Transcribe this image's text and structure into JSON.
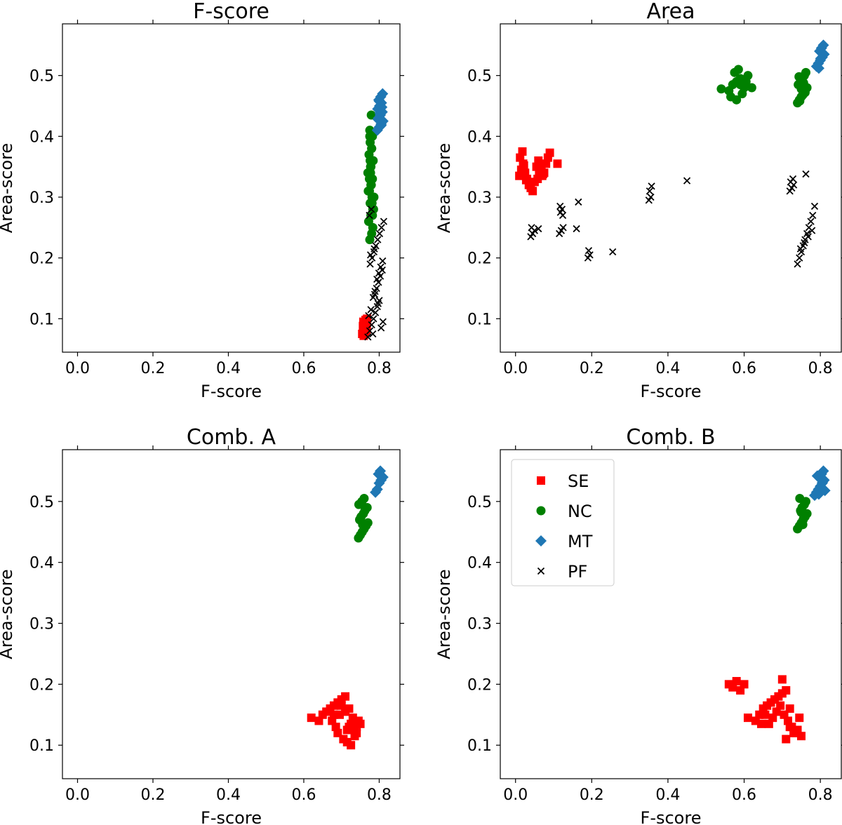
{
  "chart_data": [
    {
      "type": "scatter",
      "title": "F-score",
      "xlabel": "F-score",
      "ylabel": "Area-score",
      "xlim": [
        -0.04,
        0.855
      ],
      "ylim": [
        0.045,
        0.585
      ],
      "xticks": [
        0.0,
        0.2,
        0.4,
        0.6,
        0.8
      ],
      "xtick_labels": [
        "0.0",
        "0.2",
        "0.4",
        "0.6",
        "0.8"
      ],
      "yticks": [
        0.1,
        0.2,
        0.3,
        0.4,
        0.5
      ],
      "ytick_labels": [
        "0.1",
        "0.2",
        "0.3",
        "0.4",
        "0.5"
      ],
      "legend": false,
      "series": [
        {
          "name": "SE",
          "marker": "square",
          "color": "#ff0000",
          "x": [
            0.755,
            0.76,
            0.762,
            0.765,
            0.758,
            0.768,
            0.763,
            0.757,
            0.766,
            0.761,
            0.764,
            0.759,
            0.767,
            0.762,
            0.76
          ],
          "y": [
            0.075,
            0.08,
            0.085,
            0.09,
            0.095,
            0.1,
            0.078,
            0.088,
            0.082,
            0.092,
            0.098,
            0.072,
            0.086,
            0.094,
            0.083
          ]
        },
        {
          "name": "NC",
          "marker": "circle",
          "color": "#008000",
          "x": [
            0.775,
            0.78,
            0.783,
            0.772,
            0.778,
            0.785,
            0.776,
            0.781,
            0.774,
            0.779,
            0.782,
            0.77,
            0.777,
            0.784,
            0.773,
            0.78,
            0.776,
            0.782,
            0.775,
            0.779,
            0.786,
            0.771,
            0.778,
            0.781,
            0.774,
            0.777,
            0.783,
            0.776,
            0.78,
            0.775,
            0.782,
            0.778
          ],
          "y": [
            0.23,
            0.24,
            0.25,
            0.26,
            0.27,
            0.28,
            0.29,
            0.3,
            0.31,
            0.32,
            0.33,
            0.34,
            0.35,
            0.36,
            0.37,
            0.38,
            0.39,
            0.4,
            0.41,
            0.435,
            0.3,
            0.31,
            0.32,
            0.29,
            0.33,
            0.34,
            0.28,
            0.36,
            0.38,
            0.4,
            0.27,
            0.35
          ]
        },
        {
          "name": "MT",
          "marker": "diamond",
          "color": "#1f77b4",
          "x": [
            0.795,
            0.8,
            0.805,
            0.81,
            0.798,
            0.803,
            0.808,
            0.796,
            0.801,
            0.806,
            0.799,
            0.804,
            0.809,
            0.797,
            0.802,
            0.807,
            0.8,
            0.805
          ],
          "y": [
            0.41,
            0.415,
            0.42,
            0.425,
            0.43,
            0.435,
            0.44,
            0.445,
            0.45,
            0.455,
            0.46,
            0.465,
            0.47,
            0.428,
            0.438,
            0.448,
            0.458,
            0.418
          ]
        },
        {
          "name": "PF",
          "marker": "x",
          "color": "#000000",
          "x": [
            0.77,
            0.775,
            0.78,
            0.785,
            0.79,
            0.795,
            0.8,
            0.805,
            0.81,
            0.772,
            0.778,
            0.783,
            0.788,
            0.793,
            0.798,
            0.803,
            0.808,
            0.776,
            0.781,
            0.786,
            0.791,
            0.796,
            0.801,
            0.806,
            0.812,
            0.774,
            0.779,
            0.784,
            0.789,
            0.794,
            0.799,
            0.804,
            0.809,
            0.777,
            0.787,
            0.797
          ],
          "y": [
            0.07,
            0.08,
            0.09,
            0.1,
            0.11,
            0.12,
            0.13,
            0.085,
            0.095,
            0.105,
            0.115,
            0.075,
            0.14,
            0.15,
            0.16,
            0.17,
            0.18,
            0.19,
            0.2,
            0.21,
            0.22,
            0.23,
            0.24,
            0.25,
            0.26,
            0.27,
            0.28,
            0.135,
            0.145,
            0.165,
            0.175,
            0.185,
            0.195,
            0.205,
            0.215,
            0.125
          ]
        }
      ]
    },
    {
      "type": "scatter",
      "title": "Area",
      "xlabel": "F-score",
      "ylabel": "Area-score",
      "xlim": [
        -0.04,
        0.855
      ],
      "ylim": [
        0.045,
        0.585
      ],
      "xticks": [
        0.0,
        0.2,
        0.4,
        0.6,
        0.8
      ],
      "xtick_labels": [
        "0.0",
        "0.2",
        "0.4",
        "0.6",
        "0.8"
      ],
      "yticks": [
        0.1,
        0.2,
        0.3,
        0.4,
        0.5
      ],
      "ytick_labels": [
        "0.1",
        "0.2",
        "0.3",
        "0.4",
        "0.5"
      ],
      "legend": false,
      "series": [
        {
          "name": "SE",
          "marker": "square",
          "color": "#ff0000",
          "x": [
            0.01,
            0.015,
            0.02,
            0.012,
            0.018,
            0.025,
            0.03,
            0.035,
            0.04,
            0.045,
            0.05,
            0.055,
            0.06,
            0.065,
            0.07,
            0.075,
            0.08,
            0.085,
            0.09,
            0.11,
            0.058,
            0.062,
            0.068,
            0.072,
            0.028,
            0.022
          ],
          "y": [
            0.335,
            0.345,
            0.355,
            0.365,
            0.375,
            0.34,
            0.33,
            0.32,
            0.315,
            0.31,
            0.325,
            0.35,
            0.36,
            0.345,
            0.335,
            0.34,
            0.355,
            0.365,
            0.373,
            0.355,
            0.33,
            0.34,
            0.348,
            0.338,
            0.328,
            0.352
          ]
        },
        {
          "name": "NC",
          "marker": "circle",
          "color": "#008000",
          "x": [
            0.54,
            0.56,
            0.57,
            0.58,
            0.59,
            0.6,
            0.61,
            0.62,
            0.575,
            0.585,
            0.595,
            0.565,
            0.605,
            0.58,
            0.59,
            0.74,
            0.745,
            0.75,
            0.755,
            0.76,
            0.765,
            0.742,
            0.748,
            0.752,
            0.758,
            0.762,
            0.746,
            0.754,
            0.75,
            0.756,
            0.744,
            0.76
          ],
          "y": [
            0.478,
            0.475,
            0.485,
            0.49,
            0.495,
            0.48,
            0.5,
            0.48,
            0.505,
            0.51,
            0.47,
            0.465,
            0.49,
            0.46,
            0.485,
            0.455,
            0.46,
            0.465,
            0.47,
            0.475,
            0.48,
            0.485,
            0.49,
            0.495,
            0.5,
            0.505,
            0.458,
            0.468,
            0.478,
            0.488,
            0.498,
            0.472
          ]
        },
        {
          "name": "MT",
          "marker": "diamond",
          "color": "#1f77b4",
          "x": [
            0.79,
            0.795,
            0.8,
            0.805,
            0.81,
            0.798,
            0.803,
            0.808,
            0.796,
            0.801
          ],
          "y": [
            0.515,
            0.52,
            0.525,
            0.53,
            0.535,
            0.54,
            0.545,
            0.55,
            0.512,
            0.528
          ]
        },
        {
          "name": "PF",
          "marker": "x",
          "color": "#000000",
          "x": [
            0.04,
            0.045,
            0.05,
            0.06,
            0.042,
            0.115,
            0.12,
            0.125,
            0.118,
            0.122,
            0.117,
            0.124,
            0.16,
            0.165,
            0.19,
            0.195,
            0.192,
            0.255,
            0.35,
            0.355,
            0.352,
            0.357,
            0.45,
            0.72,
            0.725,
            0.73,
            0.722,
            0.728,
            0.74,
            0.745,
            0.75,
            0.755,
            0.76,
            0.765,
            0.77,
            0.775,
            0.78,
            0.785,
            0.748,
            0.758,
            0.768,
            0.778,
            0.762
          ],
          "y": [
            0.235,
            0.24,
            0.245,
            0.248,
            0.25,
            0.24,
            0.245,
            0.25,
            0.275,
            0.28,
            0.285,
            0.27,
            0.248,
            0.292,
            0.2,
            0.205,
            0.212,
            0.21,
            0.295,
            0.3,
            0.31,
            0.318,
            0.327,
            0.31,
            0.315,
            0.32,
            0.325,
            0.33,
            0.19,
            0.2,
            0.21,
            0.22,
            0.23,
            0.24,
            0.25,
            0.26,
            0.27,
            0.285,
            0.215,
            0.225,
            0.235,
            0.245,
            0.338
          ]
        }
      ]
    },
    {
      "type": "scatter",
      "title": "Comb. A",
      "xlabel": "F-score",
      "ylabel": "Area-score",
      "xlim": [
        -0.04,
        0.855
      ],
      "ylim": [
        0.045,
        0.585
      ],
      "xticks": [
        0.0,
        0.2,
        0.4,
        0.6,
        0.8
      ],
      "xtick_labels": [
        "0.0",
        "0.2",
        "0.4",
        "0.6",
        "0.8"
      ],
      "yticks": [
        0.1,
        0.2,
        0.3,
        0.4,
        0.5
      ],
      "ytick_labels": [
        "0.1",
        "0.2",
        "0.3",
        "0.4",
        "0.5"
      ],
      "legend": false,
      "series": [
        {
          "name": "SE",
          "marker": "square",
          "color": "#ff0000",
          "x": [
            0.62,
            0.64,
            0.65,
            0.66,
            0.67,
            0.68,
            0.69,
            0.7,
            0.71,
            0.72,
            0.73,
            0.74,
            0.75,
            0.705,
            0.715,
            0.725,
            0.735,
            0.695,
            0.685,
            0.675,
            0.72,
            0.73,
            0.71,
            0.7,
            0.74,
            0.745,
            0.69,
            0.68,
            0.715,
            0.725
          ],
          "y": [
            0.145,
            0.14,
            0.15,
            0.155,
            0.16,
            0.165,
            0.17,
            0.175,
            0.18,
            0.13,
            0.125,
            0.12,
            0.135,
            0.11,
            0.105,
            0.1,
            0.115,
            0.15,
            0.13,
            0.14,
            0.16,
            0.145,
            0.155,
            0.165,
            0.13,
            0.14,
            0.12,
            0.15,
            0.125,
            0.135
          ]
        },
        {
          "name": "NC",
          "marker": "circle",
          "color": "#008000",
          "x": [
            0.745,
            0.75,
            0.755,
            0.76,
            0.765,
            0.77,
            0.748,
            0.752,
            0.758,
            0.762,
            0.768,
            0.746,
            0.754,
            0.76,
            0.756,
            0.75
          ],
          "y": [
            0.44,
            0.445,
            0.45,
            0.455,
            0.46,
            0.465,
            0.47,
            0.475,
            0.48,
            0.485,
            0.49,
            0.495,
            0.5,
            0.505,
            0.462,
            0.472
          ]
        },
        {
          "name": "MT",
          "marker": "diamond",
          "color": "#1f77b4",
          "x": [
            0.79,
            0.795,
            0.8,
            0.805,
            0.81,
            0.798,
            0.803
          ],
          "y": [
            0.515,
            0.52,
            0.53,
            0.535,
            0.54,
            0.545,
            0.55
          ]
        }
      ]
    },
    {
      "type": "scatter",
      "title": "Comb. B",
      "xlabel": "F-score",
      "ylabel": "Area-score",
      "xlim": [
        -0.04,
        0.855
      ],
      "ylim": [
        0.045,
        0.585
      ],
      "xticks": [
        0.0,
        0.2,
        0.4,
        0.6,
        0.8
      ],
      "xtick_labels": [
        "0.0",
        "0.2",
        "0.4",
        "0.6",
        "0.8"
      ],
      "yticks": [
        0.1,
        0.2,
        0.3,
        0.4,
        0.5
      ],
      "ytick_labels": [
        "0.1",
        "0.2",
        "0.3",
        "0.4",
        "0.5"
      ],
      "legend": true,
      "legend_position": "upper-left",
      "series": [
        {
          "name": "SE",
          "marker": "square",
          "color": "#ff0000",
          "x": [
            0.56,
            0.57,
            0.58,
            0.59,
            0.6,
            0.61,
            0.63,
            0.64,
            0.65,
            0.66,
            0.67,
            0.68,
            0.69,
            0.7,
            0.71,
            0.72,
            0.73,
            0.74,
            0.75,
            0.665,
            0.675,
            0.685,
            0.695,
            0.705,
            0.715,
            0.725,
            0.735,
            0.745,
            0.655,
            0.645,
            0.7,
            0.71,
            0.72
          ],
          "y": [
            0.2,
            0.195,
            0.205,
            0.19,
            0.2,
            0.145,
            0.14,
            0.15,
            0.16,
            0.165,
            0.17,
            0.175,
            0.18,
            0.185,
            0.19,
            0.13,
            0.12,
            0.125,
            0.115,
            0.135,
            0.145,
            0.155,
            0.165,
            0.15,
            0.14,
            0.13,
            0.12,
            0.145,
            0.15,
            0.135,
            0.208,
            0.11,
            0.16
          ]
        },
        {
          "name": "NC",
          "marker": "circle",
          "color": "#008000",
          "x": [
            0.74,
            0.745,
            0.75,
            0.755,
            0.76,
            0.765,
            0.748,
            0.752,
            0.758,
            0.762,
            0.746,
            0.754,
            0.756,
            0.75
          ],
          "y": [
            0.455,
            0.46,
            0.465,
            0.47,
            0.475,
            0.48,
            0.485,
            0.49,
            0.495,
            0.5,
            0.505,
            0.462,
            0.472,
            0.482
          ]
        },
        {
          "name": "MT",
          "marker": "diamond",
          "color": "#1f77b4",
          "x": [
            0.785,
            0.79,
            0.795,
            0.8,
            0.805,
            0.81,
            0.798,
            0.803,
            0.808,
            0.796,
            0.801,
            0.806,
            0.792,
            0.812
          ],
          "y": [
            0.51,
            0.515,
            0.52,
            0.525,
            0.53,
            0.535,
            0.54,
            0.545,
            0.55,
            0.512,
            0.522,
            0.532,
            0.542,
            0.518
          ]
        }
      ],
      "legend_entries": [
        {
          "label": "SE",
          "marker": "square",
          "color": "#ff0000"
        },
        {
          "label": "NC",
          "marker": "circle",
          "color": "#008000"
        },
        {
          "label": "MT",
          "marker": "diamond",
          "color": "#1f77b4"
        },
        {
          "label": "PF",
          "marker": "x",
          "color": "#000000"
        }
      ]
    }
  ]
}
